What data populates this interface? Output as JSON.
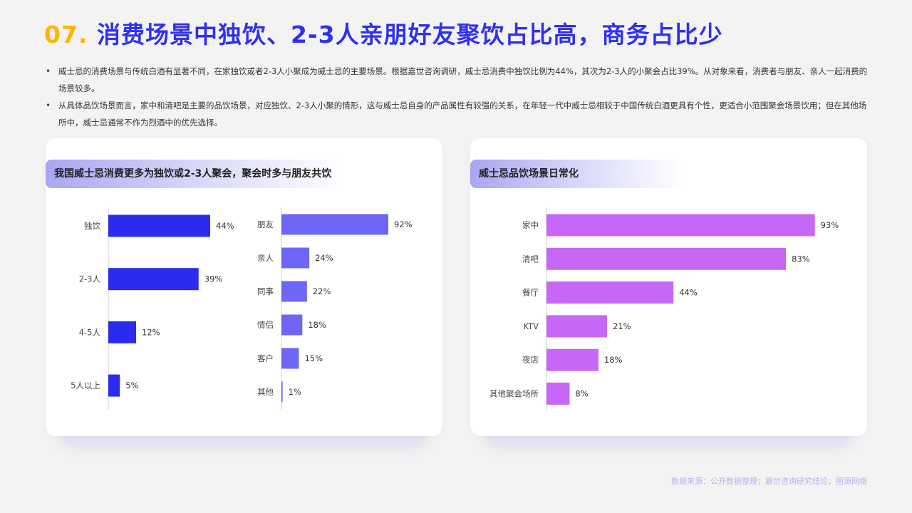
{
  "header": {
    "num": "07.",
    "title": "消费场景中独饮、2-3人亲朋好友聚饮占比高，商务占比少"
  },
  "bullets": [
    "威士忌的消费场景与传统白酒有显著不同，在家独饮或者2-3人小聚成为威士忌的主要场景。根据嘉世咨询调研，威士忌消费中独饮比例为44%，其次为2-3人的小聚会占比39%。从对象来看，消费者与朋友、亲人一起消费的场景较多。",
    "从具体品饮场景而言，家中和清吧是主要的品饮场景，对应独饮、2-3人小聚的情形，这与威士忌自身的产品属性有较强的关系，在年轻一代中威士忌相较于中国传统白酒更具有个性，更适合小范围聚会场景饮用；但在其他场所中，威士忌通常不作为烈酒中的优先选择。"
  ],
  "cards": {
    "left_title": "我国威士忌消费更多为独饮或2-3人聚会，聚会时多与朋友共饮",
    "right_title": "威士忌品饮场景日常化"
  },
  "source": "数据来源：公开数据整理；嘉世咨询研究结论；图源网络",
  "colors": {
    "title_number": "#ffb400",
    "title_text": "#3030ee",
    "bar_blue": "#2b2bef",
    "bar_periwinkle": "#6e66f5",
    "bar_violet": "#c767f7"
  },
  "chart_data": [
    {
      "type": "bar",
      "orientation": "horizontal",
      "categories": [
        "独饮",
        "2-3人",
        "4-5人",
        "5人以上"
      ],
      "values": [
        44,
        39,
        12,
        5
      ],
      "value_labels": [
        "44%",
        "39%",
        "12%",
        "5%"
      ],
      "xlim": [
        0,
        100
      ],
      "color": "#2b2bef"
    },
    {
      "type": "bar",
      "orientation": "horizontal",
      "categories": [
        "朋友",
        "亲人",
        "同事",
        "情侣",
        "客户",
        "其他"
      ],
      "values": [
        92,
        24,
        22,
        18,
        15,
        1
      ],
      "value_labels": [
        "92%",
        "24%",
        "22%",
        "18%",
        "15%",
        "1%"
      ],
      "xlim": [
        0,
        100
      ],
      "color": "#6e66f5"
    },
    {
      "type": "bar",
      "orientation": "horizontal",
      "categories": [
        "家中",
        "清吧",
        "餐厅",
        "KTV",
        "夜店",
        "其他聚会场所"
      ],
      "values": [
        93,
        83,
        44,
        21,
        18,
        8
      ],
      "value_labels": [
        "93%",
        "83%",
        "44%",
        "21%",
        "18%",
        "8%"
      ],
      "xlim": [
        0,
        100
      ],
      "color": "#c767f7"
    }
  ]
}
